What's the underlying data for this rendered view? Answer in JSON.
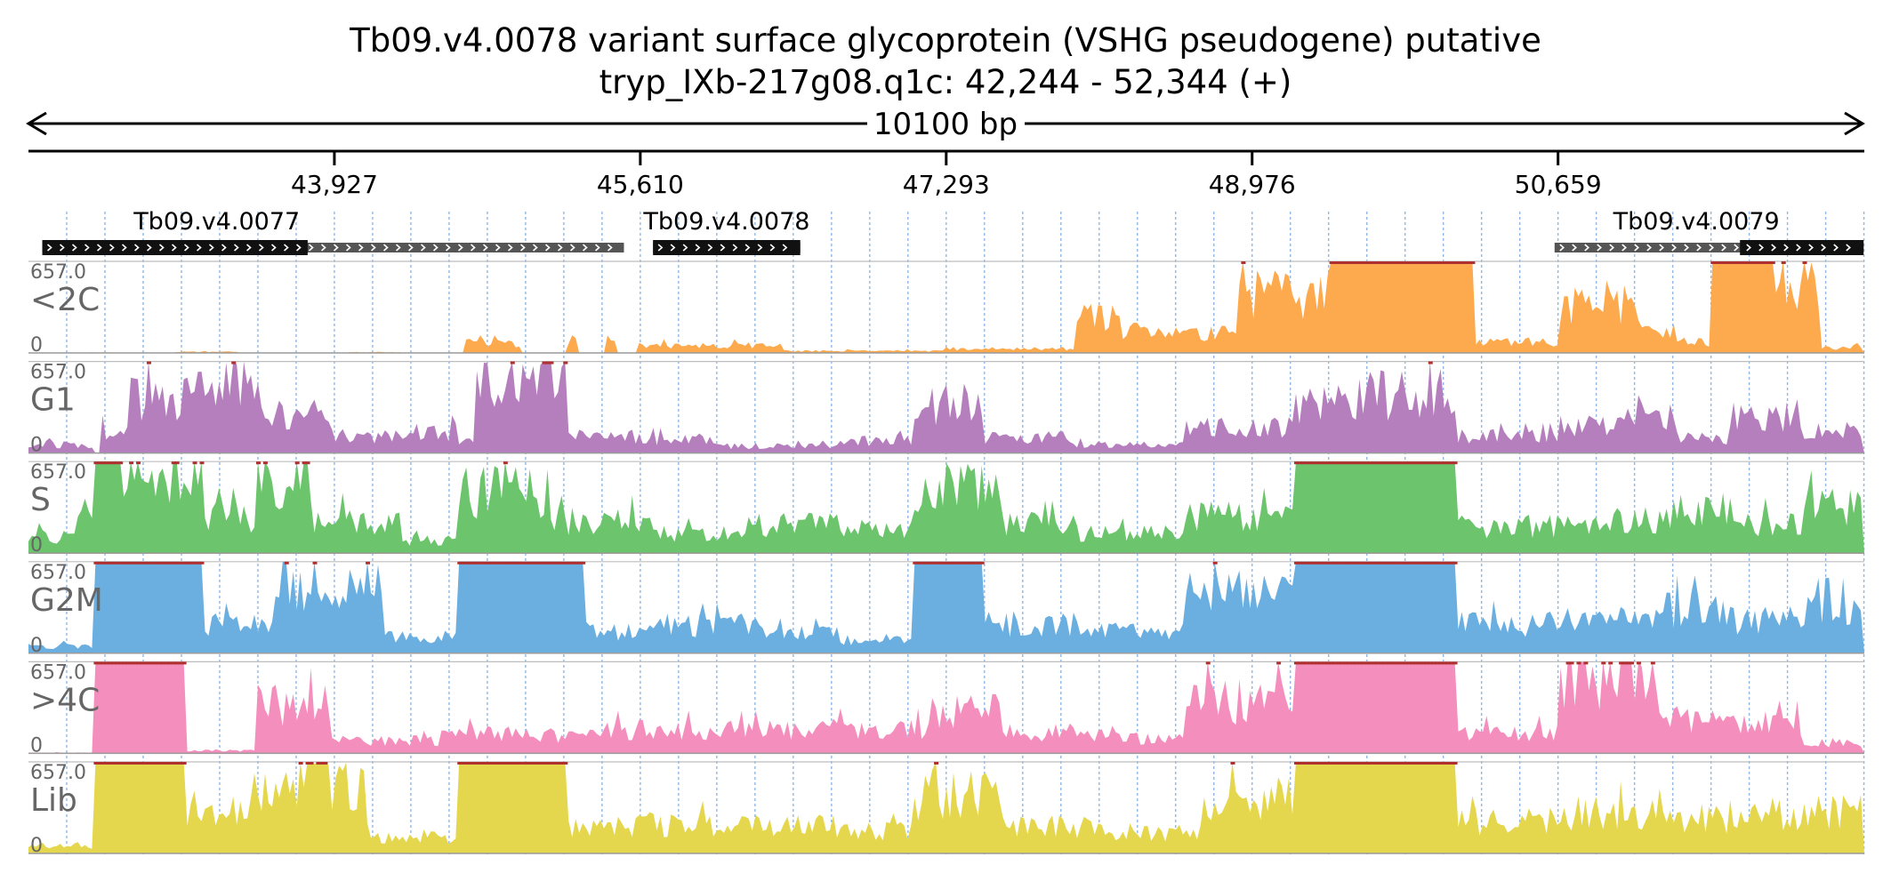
{
  "chart_data": {
    "type": "area",
    "title": "Tb09.v4.0078  variant surface glycoprotein (VSHG  pseudogene)  putative",
    "subtitle": "tryp_IXb-217g08.q1c: 42,244 - 52,344 (+)",
    "span_label": "10100 bp",
    "x_range": [
      42244,
      52344
    ],
    "x_ticks": [
      {
        "pos": 43927,
        "label": "43,927"
      },
      {
        "pos": 45610,
        "label": "45,610"
      },
      {
        "pos": 47293,
        "label": "47,293"
      },
      {
        "pos": 48976,
        "label": "48,976"
      },
      {
        "pos": 50659,
        "label": "50,659"
      }
    ],
    "genes": [
      {
        "name": "Tb09.v4.0077",
        "start": 42320,
        "end": 45520,
        "cds": [
          42320,
          43780
        ],
        "strand": "+"
      },
      {
        "name": "Tb09.v4.0078",
        "start": 45680,
        "end": 46490,
        "cds": [
          45680,
          46490
        ],
        "strand": "+"
      },
      {
        "name": "Tb09.v4.0079",
        "start": 50640,
        "end": 52340,
        "cds": [
          51660,
          52340
        ],
        "strand": "+"
      }
    ],
    "ylim": [
      0,
      657
    ],
    "ymax_label": "657.0",
    "ymin_label": "0",
    "series": [
      {
        "name": "<2C",
        "color": "#fdaa4e",
        "regions": [
          [
            42244,
            42800,
            3
          ],
          [
            43050,
            43400,
            8
          ],
          [
            44000,
            44300,
            5
          ],
          [
            44650,
            44950,
            70
          ],
          [
            45210,
            45260,
            110
          ],
          [
            45420,
            45480,
            110
          ],
          [
            45600,
            46400,
            55
          ],
          [
            46400,
            47200,
            15
          ],
          [
            47200,
            48000,
            30
          ],
          [
            48000,
            48250,
            250
          ],
          [
            48250,
            48900,
            150
          ],
          [
            48900,
            49400,
            420
          ],
          [
            49400,
            50200,
            657
          ],
          [
            50200,
            50659,
            80
          ],
          [
            50659,
            51100,
            360
          ],
          [
            51100,
            51300,
            170
          ],
          [
            51300,
            51500,
            80
          ],
          [
            51500,
            51850,
            657
          ],
          [
            51850,
            52100,
            500
          ],
          [
            52100,
            52344,
            40
          ]
        ]
      },
      {
        "name": "G1",
        "color": "#b57fbe",
        "regions": [
          [
            42244,
            42600,
            60
          ],
          [
            42650,
            42800,
            150
          ],
          [
            42800,
            43100,
            400
          ],
          [
            43100,
            43500,
            520
          ],
          [
            43500,
            43900,
            280
          ],
          [
            43900,
            44300,
            120
          ],
          [
            44300,
            44600,
            150
          ],
          [
            44600,
            44700,
            80
          ],
          [
            44700,
            45200,
            560
          ],
          [
            45200,
            45600,
            120
          ],
          [
            45600,
            46000,
            100
          ],
          [
            46000,
            46700,
            50
          ],
          [
            46700,
            47100,
            90
          ],
          [
            47100,
            47500,
            360
          ],
          [
            47500,
            48000,
            110
          ],
          [
            48000,
            48600,
            60
          ],
          [
            48600,
            49200,
            180
          ],
          [
            49200,
            49500,
            380
          ],
          [
            49500,
            50100,
            420
          ],
          [
            50100,
            50659,
            120
          ],
          [
            50659,
            51000,
            200
          ],
          [
            51000,
            51300,
            300
          ],
          [
            51300,
            51600,
            110
          ],
          [
            51600,
            52000,
            270
          ],
          [
            52000,
            52344,
            160
          ]
        ]
      },
      {
        "name": "S",
        "color": "#6cc46c",
        "regions": [
          [
            42244,
            42500,
            120
          ],
          [
            42500,
            42600,
            280
          ],
          [
            42600,
            43200,
            620
          ],
          [
            43200,
            43500,
            260
          ],
          [
            43500,
            43800,
            560
          ],
          [
            43800,
            44300,
            240
          ],
          [
            44300,
            44600,
            90
          ],
          [
            44600,
            45100,
            440
          ],
          [
            45100,
            45700,
            230
          ],
          [
            45700,
            46100,
            140
          ],
          [
            46100,
            46700,
            200
          ],
          [
            46700,
            47100,
            170
          ],
          [
            47100,
            47600,
            460
          ],
          [
            47600,
            48000,
            210
          ],
          [
            48000,
            48600,
            140
          ],
          [
            48600,
            49200,
            260
          ],
          [
            49200,
            50100,
            657
          ],
          [
            50100,
            50659,
            190
          ],
          [
            50659,
            51200,
            230
          ],
          [
            51200,
            51600,
            300
          ],
          [
            51600,
            52000,
            220
          ],
          [
            52000,
            52344,
            330
          ]
        ]
      },
      {
        "name": "G2M",
        "color": "#6aafe0",
        "regions": [
          [
            42244,
            42600,
            50
          ],
          [
            42600,
            43200,
            657
          ],
          [
            43200,
            43600,
            200
          ],
          [
            43600,
            44200,
            540
          ],
          [
            44200,
            44600,
            120
          ],
          [
            44600,
            45300,
            657
          ],
          [
            45300,
            45700,
            160
          ],
          [
            45700,
            46300,
            200
          ],
          [
            46300,
            46700,
            140
          ],
          [
            46700,
            47100,
            100
          ],
          [
            47100,
            47500,
            657
          ],
          [
            47500,
            48000,
            210
          ],
          [
            48000,
            48600,
            160
          ],
          [
            48600,
            49200,
            410
          ],
          [
            49200,
            50100,
            657
          ],
          [
            50100,
            50659,
            210
          ],
          [
            50659,
            51200,
            230
          ],
          [
            51200,
            51600,
            310
          ],
          [
            51600,
            52000,
            240
          ],
          [
            52000,
            52344,
            300
          ]
        ]
      },
      {
        "name": ">4C",
        "color": "#f48fbd",
        "regions": [
          [
            42244,
            42600,
            5
          ],
          [
            42600,
            43100,
            657
          ],
          [
            43100,
            43500,
            20
          ],
          [
            43500,
            43900,
            340
          ],
          [
            43900,
            44500,
            90
          ],
          [
            44500,
            45000,
            140
          ],
          [
            45000,
            45400,
            130
          ],
          [
            45400,
            45900,
            170
          ],
          [
            45900,
            46600,
            170
          ],
          [
            46600,
            47200,
            180
          ],
          [
            47200,
            47600,
            310
          ],
          [
            47600,
            48200,
            150
          ],
          [
            48200,
            48600,
            110
          ],
          [
            48600,
            49200,
            370
          ],
          [
            49200,
            50100,
            657
          ],
          [
            50100,
            50659,
            150
          ],
          [
            50659,
            51200,
            550
          ],
          [
            51200,
            51600,
            260
          ],
          [
            51600,
            52000,
            210
          ],
          [
            52000,
            52344,
            80
          ]
        ]
      },
      {
        "name": "Lib",
        "color": "#e5d74d",
        "regions": [
          [
            42244,
            42600,
            60
          ],
          [
            42600,
            43100,
            657
          ],
          [
            43100,
            43600,
            320
          ],
          [
            43600,
            44100,
            540
          ],
          [
            44100,
            44600,
            120
          ],
          [
            44600,
            45200,
            657
          ],
          [
            45200,
            45600,
            190
          ],
          [
            45600,
            46200,
            210
          ],
          [
            46200,
            46700,
            200
          ],
          [
            46700,
            47100,
            160
          ],
          [
            47100,
            47600,
            420
          ],
          [
            47600,
            48200,
            190
          ],
          [
            48200,
            48700,
            150
          ],
          [
            48700,
            49200,
            400
          ],
          [
            49200,
            50100,
            657
          ],
          [
            50100,
            50659,
            230
          ],
          [
            50659,
            51200,
            290
          ],
          [
            51200,
            51600,
            260
          ],
          [
            51600,
            52000,
            290
          ],
          [
            52000,
            52344,
            310
          ]
        ]
      }
    ],
    "grid": true
  }
}
